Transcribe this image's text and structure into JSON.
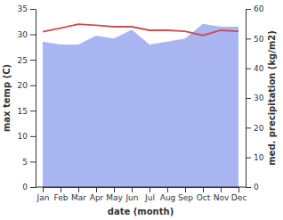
{
  "chart_data": {
    "type": "line",
    "x_label": "date (month)",
    "y_label": "max temp (C)",
    "y2_label": "med. precipitation (kg/m2)",
    "categories": [
      "Jan",
      "Feb",
      "Mar",
      "Apr",
      "May",
      "Jun",
      "Jul",
      "Aug",
      "Sep",
      "Oct",
      "Nov",
      "Dec"
    ],
    "series": [
      {
        "type": "area",
        "axis": "y2",
        "color": "#aab6f2",
        "values": [
          49,
          48,
          48,
          51,
          50,
          53,
          48,
          49,
          50,
          55,
          54,
          54
        ]
      },
      {
        "type": "line",
        "color": "#c8504f",
        "values": [
          30.5,
          31.2,
          32,
          31.8,
          31.5,
          31.5,
          30.8,
          30.8,
          30.6,
          29.8,
          30.8,
          30.6
        ]
      }
    ],
    "ylim": [
      0,
      35
    ],
    "yticks": [
      0,
      5,
      10,
      15,
      20,
      25,
      30,
      35
    ],
    "y2lim": [
      0,
      60
    ],
    "y2ticks": [
      0,
      10,
      20,
      30,
      40,
      50,
      60
    ],
    "grid": false
  }
}
